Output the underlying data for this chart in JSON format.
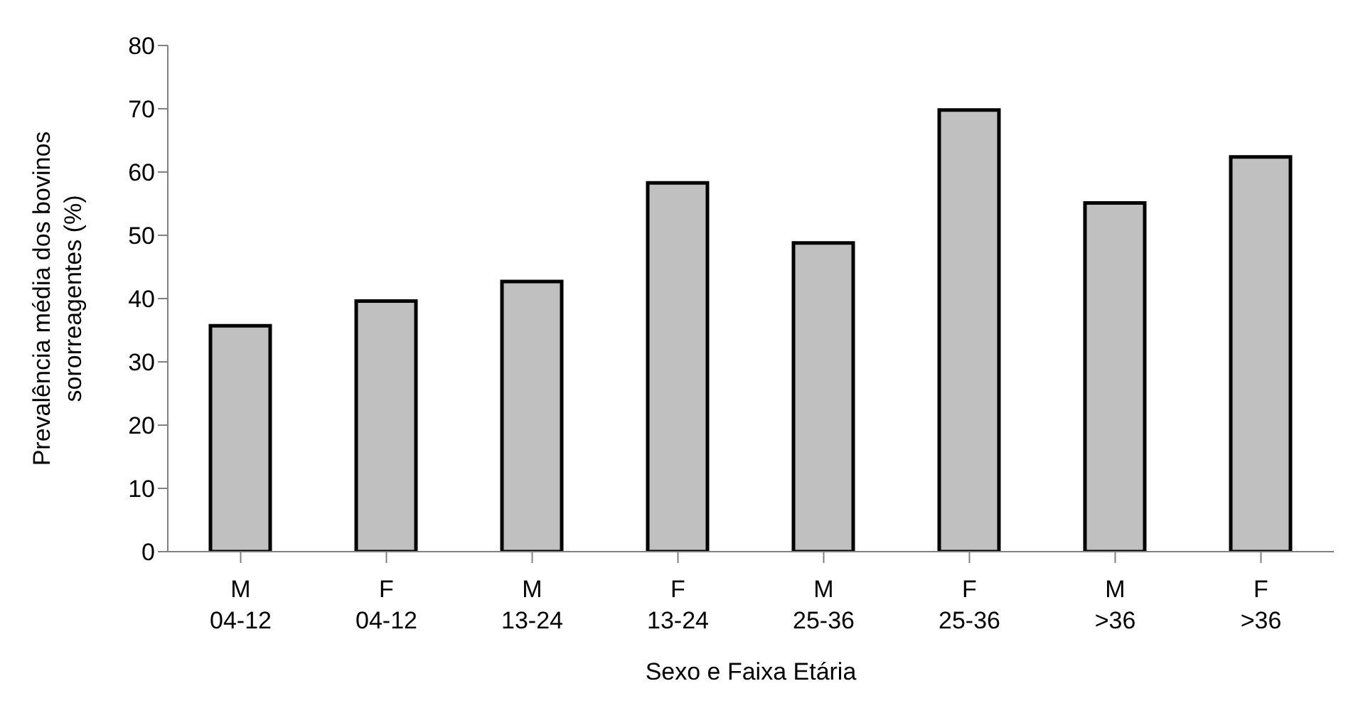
{
  "chart_data": {
    "type": "bar",
    "xlabel": "Sexo e Faixa Etária",
    "ylabel": "Prevalência média dos bovinos\nsororreagentes (%)",
    "categories": [
      "M\n04-12",
      "F\n04-12",
      "M\n13-24",
      "F\n13-24",
      "M\n25-36",
      "F\n25-36",
      "M\n>36",
      "F\n>36"
    ],
    "values": [
      35.7,
      39.6,
      42.7,
      58.3,
      48.8,
      69.8,
      55.1,
      62.4
    ],
    "color": "#c0c0c0",
    "ylim": [
      0,
      80
    ],
    "yticks": [
      0,
      10,
      20,
      30,
      40,
      50,
      60,
      70,
      80
    ],
    "grid": false,
    "legend": false
  }
}
